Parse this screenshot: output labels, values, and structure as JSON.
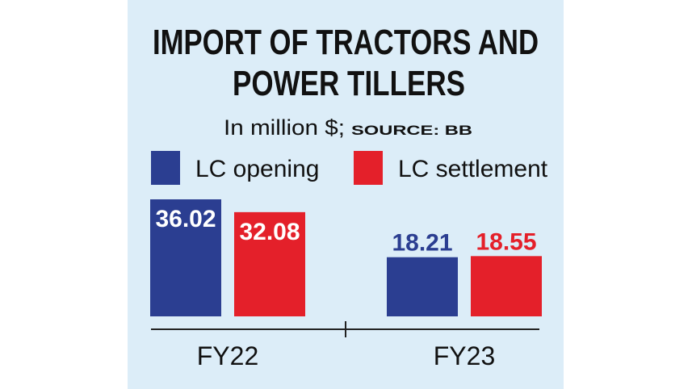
{
  "chart_data": {
    "type": "bar",
    "title": [
      "IMPORT OF TRACTORS AND",
      "POWER TILLERS"
    ],
    "subtitle": "In million $;",
    "source": "SOURCE: BB",
    "categories": [
      "FY22",
      "FY23"
    ],
    "series": [
      {
        "name": "LC opening",
        "color": "#2b3e91",
        "values": [
          36.02,
          18.21
        ]
      },
      {
        "name": "LC settlement",
        "color": "#e4202a",
        "values": [
          32.08,
          18.55
        ]
      }
    ]
  }
}
